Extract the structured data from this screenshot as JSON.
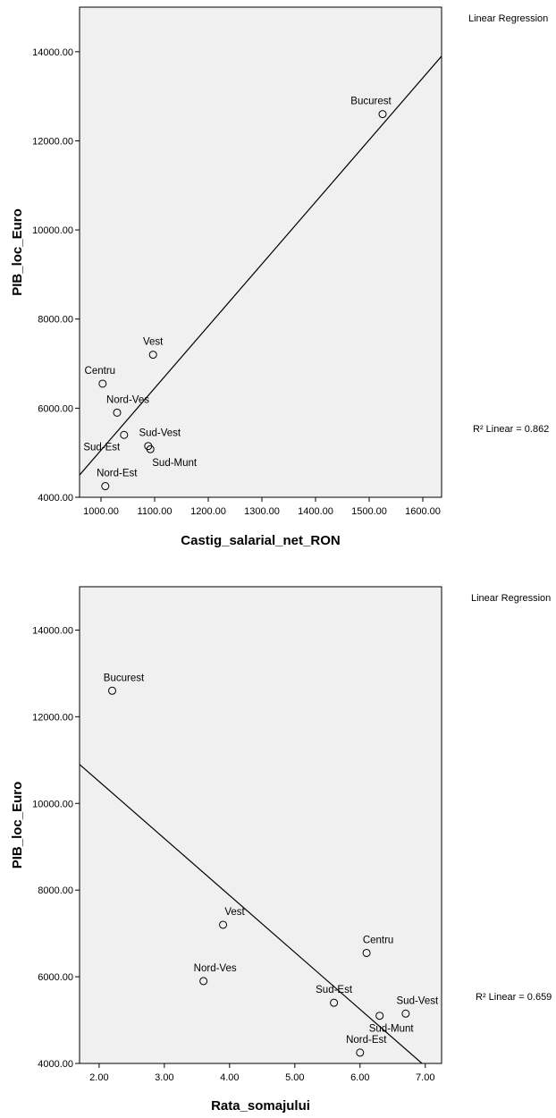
{
  "chart_data": [
    {
      "type": "scatter",
      "xlabel": "Castig_salarial_net_RON",
      "ylabel": "PIB_loc_Euro",
      "legend_title": "Linear Regression",
      "r2_label": "R² Linear = 0.862",
      "xlim": [
        960,
        1635
      ],
      "ylim": [
        4000,
        15000
      ],
      "xticks": [
        "1000.00",
        "1100.00",
        "1200.00",
        "1300.00",
        "1400.00",
        "1500.00",
        "1600.00"
      ],
      "xtick_values": [
        1000,
        1100,
        1200,
        1300,
        1400,
        1500,
        1600
      ],
      "yticks": [
        "4000.00",
        "6000.00",
        "8000.00",
        "10000.00",
        "12000.00",
        "14000.00"
      ],
      "ytick_values": [
        4000,
        6000,
        8000,
        10000,
        12000,
        14000
      ],
      "points": [
        {
          "label": "Bucurest",
          "x": 1525,
          "y": 12600
        },
        {
          "label": "Vest",
          "x": 1097,
          "y": 7200
        },
        {
          "label": "Centru",
          "x": 1003,
          "y": 6550
        },
        {
          "label": "Nord-Ves",
          "x": 1030,
          "y": 5900
        },
        {
          "label": "Sud-Est",
          "x": 1043,
          "y": 5400
        },
        {
          "label": "Sud-Vest",
          "x": 1088,
          "y": 5150
        },
        {
          "label": "Sud-Munt",
          "x": 1092,
          "y": 5080
        },
        {
          "label": "Nord-Est",
          "x": 1008,
          "y": 4250
        }
      ],
      "fit_line": {
        "x": [
          960,
          1635
        ],
        "y": [
          4500,
          13900
        ]
      }
    },
    {
      "type": "scatter",
      "xlabel": "Rata_somajului",
      "ylabel": "PIB_loc_Euro",
      "legend_title": "Linear Regression",
      "r2_label": "R² Linear = 0.659",
      "xlim": [
        1.7,
        7.25
      ],
      "ylim": [
        4000,
        15000
      ],
      "xticks": [
        "2.00",
        "3.00",
        "4.00",
        "5.00",
        "6.00",
        "7.00"
      ],
      "xtick_values": [
        2,
        3,
        4,
        5,
        6,
        7
      ],
      "yticks": [
        "4000.00",
        "6000.00",
        "8000.00",
        "10000.00",
        "12000.00",
        "14000.00"
      ],
      "ytick_values": [
        4000,
        6000,
        8000,
        10000,
        12000,
        14000
      ],
      "points": [
        {
          "label": "Bucurest",
          "x": 2.2,
          "y": 12600
        },
        {
          "label": "Vest",
          "x": 3.9,
          "y": 7200
        },
        {
          "label": "Centru",
          "x": 6.1,
          "y": 6550
        },
        {
          "label": "Nord-Ves",
          "x": 3.6,
          "y": 5900
        },
        {
          "label": "Sud-Est",
          "x": 5.6,
          "y": 5400
        },
        {
          "label": "Sud-Vest",
          "x": 6.7,
          "y": 5150
        },
        {
          "label": "Sud-Munt",
          "x": 6.3,
          "y": 5100
        },
        {
          "label": "Nord-Est",
          "x": 6.0,
          "y": 4250
        }
      ],
      "fit_line": {
        "x": [
          1.7,
          6.95
        ],
        "y": [
          10900,
          4000
        ]
      }
    }
  ]
}
